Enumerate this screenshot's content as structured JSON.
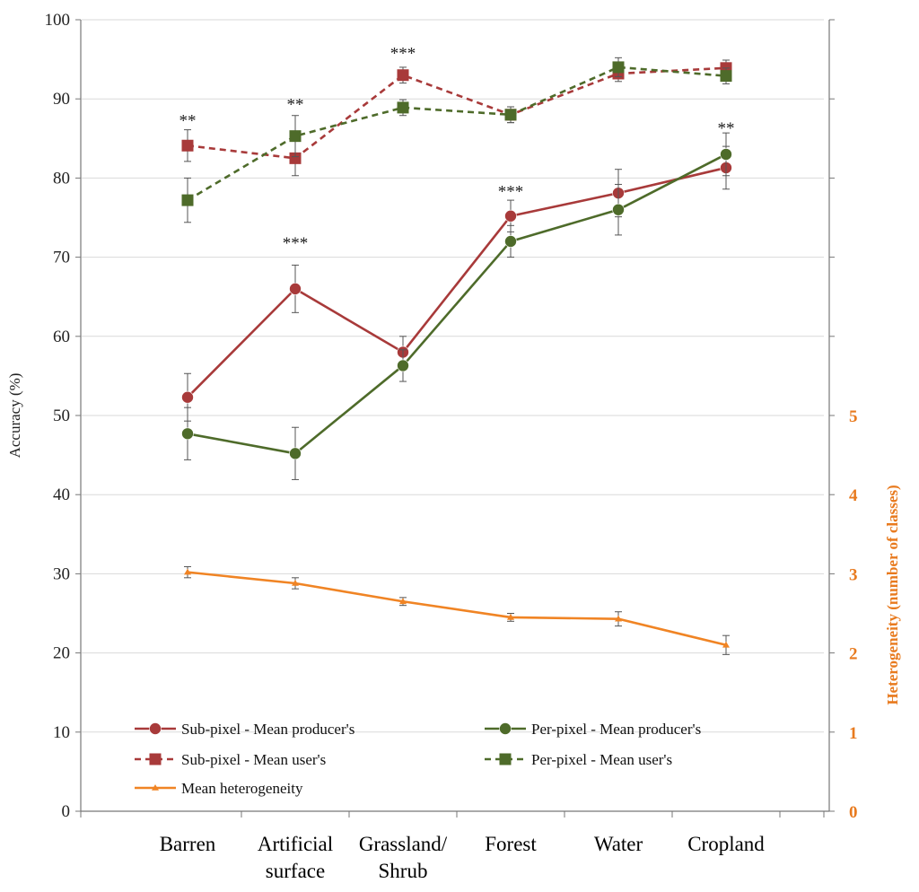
{
  "chart_data": {
    "type": "line",
    "title": "",
    "categories": [
      "Barren",
      "Artificial surface",
      "Grassland/ Shrub",
      "Forest",
      "Water",
      "Cropland"
    ],
    "category_lines": [
      [
        "Barren"
      ],
      [
        "Artificial",
        "surface"
      ],
      [
        "Grassland/",
        "Shrub"
      ],
      [
        "Forest"
      ],
      [
        "Water"
      ],
      [
        "Cropland"
      ]
    ],
    "ylabel": "Accuracy (%)",
    "ylim": [
      0,
      100
    ],
    "yticks": [
      "0",
      "10",
      "20",
      "30",
      "40",
      "50",
      "60",
      "70",
      "80",
      "90",
      "100"
    ],
    "y2label": "Heterogeneity (number of classes)",
    "y2lim": [
      0,
      10
    ],
    "y2ticks": [
      "0",
      "1",
      "2",
      "3",
      "4",
      "5"
    ],
    "grid": true,
    "legend_position": "bottom-left",
    "series": [
      {
        "name": "Sub-pixel - Mean producer's",
        "axis": "left",
        "color": "#a83a3a",
        "dash": false,
        "marker": "circle",
        "values": [
          52.3,
          66.0,
          58.0,
          75.2,
          78.1,
          81.3
        ],
        "errors": [
          3.0,
          3.0,
          2.0,
          2.0,
          3.0,
          2.7
        ]
      },
      {
        "name": "Per-pixel - Mean producer's",
        "axis": "left",
        "color": "#4e6b2a",
        "dash": false,
        "marker": "circle",
        "values": [
          47.7,
          45.2,
          56.3,
          72.0,
          76.0,
          83.0
        ],
        "errors": [
          3.3,
          3.3,
          2.0,
          2.0,
          3.2,
          2.7
        ]
      },
      {
        "name": "Sub-pixel - Mean user's",
        "axis": "left",
        "color": "#a83a3a",
        "dash": true,
        "marker": "square",
        "values": [
          84.1,
          82.5,
          93.0,
          88.0,
          93.2,
          93.9
        ],
        "errors": [
          2.0,
          2.2,
          1.0,
          1.0,
          1.0,
          1.0
        ]
      },
      {
        "name": "Per-pixel - Mean user's",
        "axis": "left",
        "color": "#4e6b2a",
        "dash": true,
        "marker": "square",
        "values": [
          77.2,
          85.3,
          88.9,
          88.0,
          94.0,
          92.9
        ],
        "errors": [
          2.8,
          2.6,
          1.0,
          1.0,
          1.2,
          1.0
        ]
      },
      {
        "name": "Mean heterogeneity",
        "axis": "right",
        "color": "#f08424",
        "dash": false,
        "marker": "triangle",
        "values": [
          3.02,
          2.88,
          2.65,
          2.45,
          2.43,
          2.1
        ],
        "errors": [
          0.07,
          0.07,
          0.05,
          0.05,
          0.09,
          0.12
        ]
      }
    ],
    "annotations": [
      {
        "category": "Barren",
        "text": "**",
        "y": 87.5
      },
      {
        "category": "Artificial surface",
        "text": "**",
        "y": 89.5
      },
      {
        "category": "Artificial surface",
        "text": "***",
        "y": 72.0
      },
      {
        "category": "Grassland/ Shrub",
        "text": "***",
        "y": 96.0
      },
      {
        "category": "Forest",
        "text": "***",
        "y": 78.5
      },
      {
        "category": "Cropland",
        "text": "**",
        "y": 86.5
      }
    ]
  }
}
